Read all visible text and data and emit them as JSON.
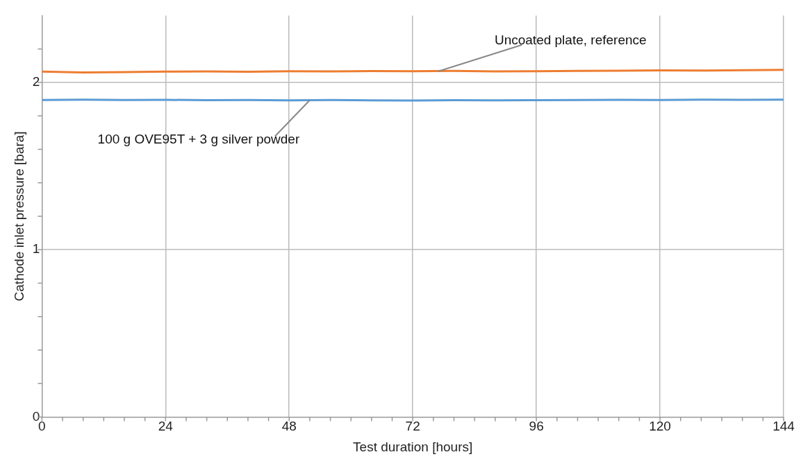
{
  "chart_data": {
    "type": "line",
    "xlabel": "Test duration [hours]",
    "ylabel": "Cathode inlet pressure [bara]",
    "x": [
      0,
      8,
      16,
      24,
      32,
      40,
      48,
      56,
      64,
      72,
      80,
      88,
      96,
      104,
      112,
      120,
      128,
      136,
      144
    ],
    "series": [
      {
        "color": "#ed7d31",
        "values": [
          2.065,
          2.06,
          2.062,
          2.065,
          2.066,
          2.064,
          2.067,
          2.066,
          2.068,
          2.067,
          2.069,
          2.066,
          2.067,
          2.069,
          2.07,
          2.072,
          2.071,
          2.073,
          2.075
        ]
      },
      {
        "color": "#5b9bd5",
        "values": [
          1.895,
          1.897,
          1.895,
          1.896,
          1.894,
          1.895,
          1.893,
          1.895,
          1.893,
          1.892,
          1.894,
          1.893,
          1.894,
          1.895,
          1.896,
          1.895,
          1.897,
          1.896,
          1.897
        ]
      }
    ],
    "xlim": [
      0,
      144
    ],
    "xticks": [
      0,
      {
        "value": 4,
        "label": null
      },
      {
        "value": 8,
        "label": null
      },
      {
        "value": 12,
        "label": null
      },
      {
        "value": 16,
        "label": null
      },
      {
        "value": 20,
        "label": null
      },
      24,
      {
        "value": 28,
        "label": null
      },
      {
        "value": 32,
        "label": null
      },
      {
        "value": 36,
        "label": null
      },
      {
        "value": 40,
        "label": null
      },
      {
        "value": 44,
        "label": null
      },
      48,
      {
        "value": 52,
        "label": null
      },
      {
        "value": 56,
        "label": null
      },
      {
        "value": 60,
        "label": null
      },
      {
        "value": 64,
        "label": null
      },
      {
        "value": 68,
        "label": null
      },
      72,
      {
        "value": 76,
        "label": null
      },
      {
        "value": 80,
        "label": null
      },
      {
        "value": 84,
        "label": null
      },
      {
        "value": 88,
        "label": null
      },
      {
        "value": 92,
        "label": null
      },
      96,
      {
        "value": 100,
        "label": null
      },
      {
        "value": 104,
        "label": null
      },
      {
        "value": 108,
        "label": null
      },
      {
        "value": 112,
        "label": null
      },
      {
        "value": 116,
        "label": null
      },
      120,
      {
        "value": 124,
        "label": null
      },
      {
        "value": 128,
        "label": null
      },
      {
        "value": 132,
        "label": null
      },
      {
        "value": 136,
        "label": null
      },
      {
        "value": 140,
        "label": null
      },
      144
    ],
    "ylim": [
      0,
      2.4
    ],
    "yticks": [
      0,
      {
        "value": 0.2,
        "label": null
      },
      {
        "value": 0.4,
        "label": null
      },
      {
        "value": 0.6,
        "label": null
      },
      {
        "value": 0.8,
        "label": null
      },
      1,
      {
        "value": 1.2,
        "label": null
      },
      {
        "value": 1.4,
        "label": null
      },
      {
        "value": 1.6,
        "label": null
      },
      {
        "value": 1.8,
        "label": null
      },
      2,
      {
        "value": 2.2,
        "label": null
      }
    ],
    "grid": true,
    "marker": "none",
    "line_style": "solid",
    "annotations": [
      {
        "text": "Uncoated plate, reference",
        "x": 77,
        "y": 2.067
      },
      {
        "text": "100 g OVE95T + 3 g silver powder",
        "x": 52,
        "y": 1.894
      }
    ]
  }
}
